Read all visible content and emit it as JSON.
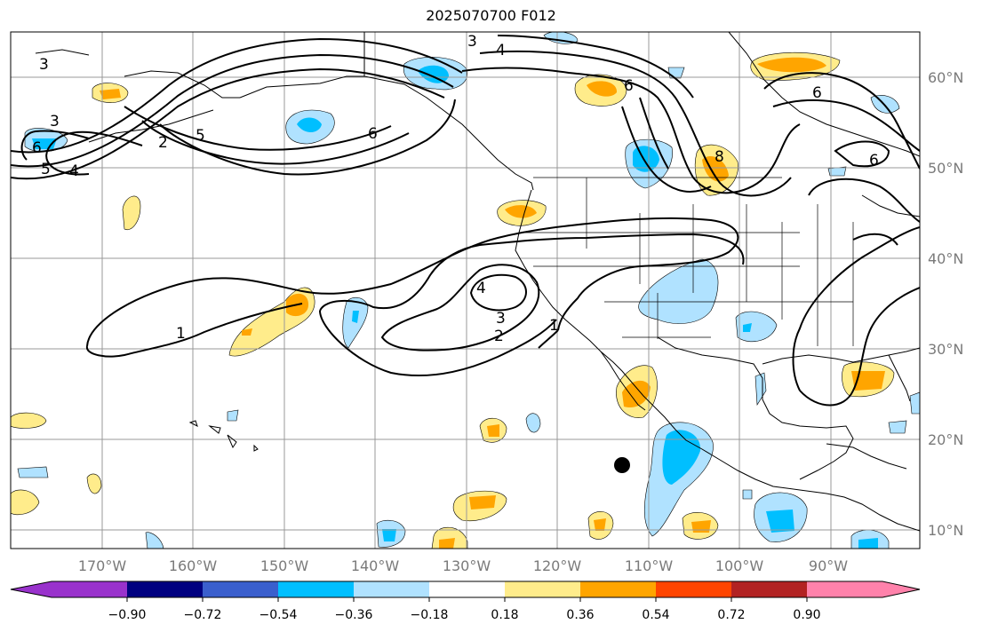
{
  "title": "2025070700 F012",
  "map": {
    "lon_ticks": [
      "170°W",
      "160°W",
      "150°W",
      "140°W",
      "130°W",
      "120°W",
      "110°W",
      "100°W",
      "90°W"
    ],
    "lat_ticks": [
      "60°N",
      "50°N",
      "40°N",
      "30°N",
      "20°N",
      "10°N"
    ],
    "contour_labels": [
      "1",
      "1",
      "2",
      "2",
      "3",
      "3",
      "3",
      "3",
      "4",
      "4",
      "4",
      "5",
      "5",
      "6",
      "6",
      "6",
      "6",
      "6",
      "8"
    ]
  },
  "colorbar": {
    "tick_labels": [
      "−0.90",
      "−0.72",
      "−0.54",
      "−0.36",
      "−0.18",
      "0.18",
      "0.36",
      "0.54",
      "0.72",
      "0.90"
    ],
    "colors": {
      "under": "#9932cc",
      "neg_090_072": "#000080",
      "neg_072_054": "#3a5fcd",
      "neg_054_036": "#00bfff",
      "neg_036_018": "#b0e2ff",
      "neutral": "#ffffff",
      "pos_018_036": "#ffec8b",
      "pos_036_054": "#ffa500",
      "pos_054_072": "#ff4500",
      "pos_072_090": "#b22222",
      "over": "#ff82ab"
    }
  }
}
